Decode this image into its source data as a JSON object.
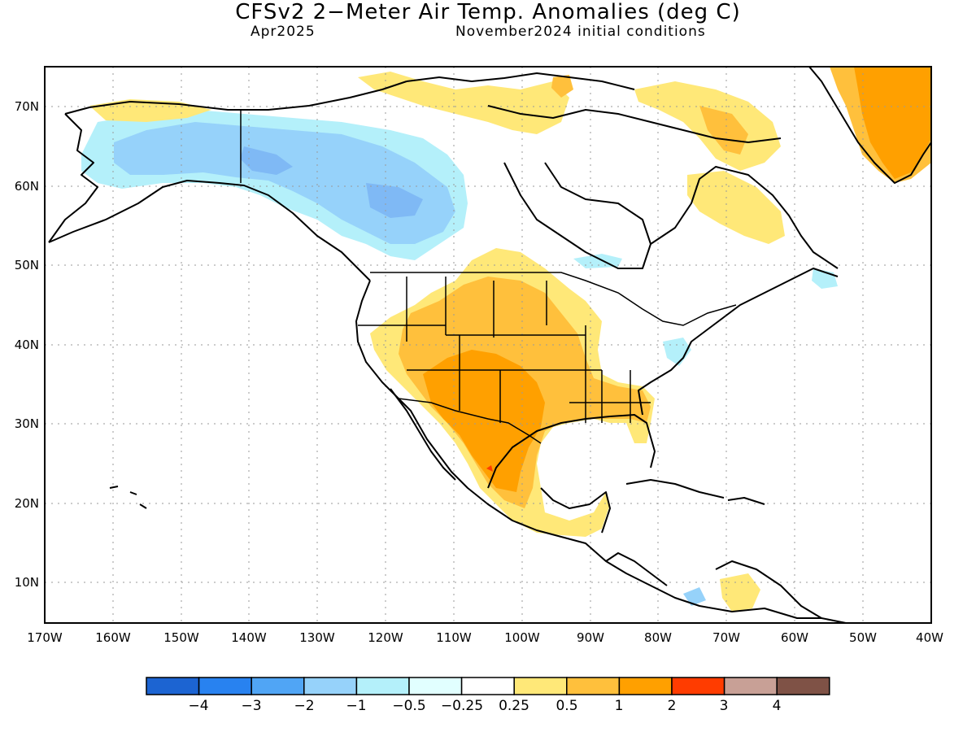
{
  "title": "CFSv2 2−Meter Air Temp. Anomalies (deg C)",
  "subtitle_left": "Apr2025",
  "subtitle_right": "November2024 initial conditions",
  "lat_labels": [
    "70N",
    "60N",
    "50N",
    "40N",
    "30N",
    "20N",
    "10N"
  ],
  "lon_labels": [
    "170W",
    "160W",
    "150W",
    "140W",
    "130W",
    "120W",
    "110W",
    "100W",
    "90W",
    "80W",
    "70W",
    "60W",
    "50W",
    "40W"
  ],
  "colorbar": {
    "colors": [
      "#1c64d2",
      "#2882f0",
      "#50a5f5",
      "#96d2fa",
      "#b4f0fa",
      "#e1ffff",
      "#ffffff",
      "#ffe878",
      "#ffc03c",
      "#ffa000",
      "#ff3c00",
      "#c8a096",
      "#7f5246"
    ],
    "labels": [
      "−4",
      "−3",
      "−2",
      "−1",
      "−0.5",
      "−0.25",
      "0.25",
      "0.5",
      "1",
      "2",
      "3",
      "4"
    ]
  }
}
